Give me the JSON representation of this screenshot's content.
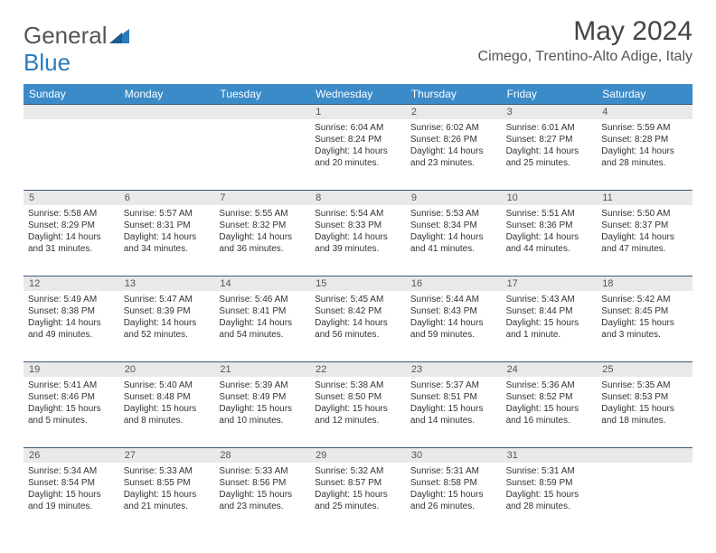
{
  "logo": {
    "text1": "General",
    "text2": "Blue"
  },
  "title": "May 2024",
  "location": "Cimego, Trentino-Alto Adige, Italy",
  "colors": {
    "header_bg": "#3b8bc9",
    "header_text": "#ffffff",
    "week_border": "#3b5a7a",
    "daynum_bg": "#e9e9e9",
    "text": "#333333",
    "logo_blue": "#2b7bbf"
  },
  "day_labels": [
    "Sunday",
    "Monday",
    "Tuesday",
    "Wednesday",
    "Thursday",
    "Friday",
    "Saturday"
  ],
  "weeks": [
    [
      {
        "n": "",
        "lines": []
      },
      {
        "n": "",
        "lines": []
      },
      {
        "n": "",
        "lines": []
      },
      {
        "n": "1",
        "lines": [
          "Sunrise: 6:04 AM",
          "Sunset: 8:24 PM",
          "Daylight: 14 hours",
          "and 20 minutes."
        ]
      },
      {
        "n": "2",
        "lines": [
          "Sunrise: 6:02 AM",
          "Sunset: 8:26 PM",
          "Daylight: 14 hours",
          "and 23 minutes."
        ]
      },
      {
        "n": "3",
        "lines": [
          "Sunrise: 6:01 AM",
          "Sunset: 8:27 PM",
          "Daylight: 14 hours",
          "and 25 minutes."
        ]
      },
      {
        "n": "4",
        "lines": [
          "Sunrise: 5:59 AM",
          "Sunset: 8:28 PM",
          "Daylight: 14 hours",
          "and 28 minutes."
        ]
      }
    ],
    [
      {
        "n": "5",
        "lines": [
          "Sunrise: 5:58 AM",
          "Sunset: 8:29 PM",
          "Daylight: 14 hours",
          "and 31 minutes."
        ]
      },
      {
        "n": "6",
        "lines": [
          "Sunrise: 5:57 AM",
          "Sunset: 8:31 PM",
          "Daylight: 14 hours",
          "and 34 minutes."
        ]
      },
      {
        "n": "7",
        "lines": [
          "Sunrise: 5:55 AM",
          "Sunset: 8:32 PM",
          "Daylight: 14 hours",
          "and 36 minutes."
        ]
      },
      {
        "n": "8",
        "lines": [
          "Sunrise: 5:54 AM",
          "Sunset: 8:33 PM",
          "Daylight: 14 hours",
          "and 39 minutes."
        ]
      },
      {
        "n": "9",
        "lines": [
          "Sunrise: 5:53 AM",
          "Sunset: 8:34 PM",
          "Daylight: 14 hours",
          "and 41 minutes."
        ]
      },
      {
        "n": "10",
        "lines": [
          "Sunrise: 5:51 AM",
          "Sunset: 8:36 PM",
          "Daylight: 14 hours",
          "and 44 minutes."
        ]
      },
      {
        "n": "11",
        "lines": [
          "Sunrise: 5:50 AM",
          "Sunset: 8:37 PM",
          "Daylight: 14 hours",
          "and 47 minutes."
        ]
      }
    ],
    [
      {
        "n": "12",
        "lines": [
          "Sunrise: 5:49 AM",
          "Sunset: 8:38 PM",
          "Daylight: 14 hours",
          "and 49 minutes."
        ]
      },
      {
        "n": "13",
        "lines": [
          "Sunrise: 5:47 AM",
          "Sunset: 8:39 PM",
          "Daylight: 14 hours",
          "and 52 minutes."
        ]
      },
      {
        "n": "14",
        "lines": [
          "Sunrise: 5:46 AM",
          "Sunset: 8:41 PM",
          "Daylight: 14 hours",
          "and 54 minutes."
        ]
      },
      {
        "n": "15",
        "lines": [
          "Sunrise: 5:45 AM",
          "Sunset: 8:42 PM",
          "Daylight: 14 hours",
          "and 56 minutes."
        ]
      },
      {
        "n": "16",
        "lines": [
          "Sunrise: 5:44 AM",
          "Sunset: 8:43 PM",
          "Daylight: 14 hours",
          "and 59 minutes."
        ]
      },
      {
        "n": "17",
        "lines": [
          "Sunrise: 5:43 AM",
          "Sunset: 8:44 PM",
          "Daylight: 15 hours",
          "and 1 minute."
        ]
      },
      {
        "n": "18",
        "lines": [
          "Sunrise: 5:42 AM",
          "Sunset: 8:45 PM",
          "Daylight: 15 hours",
          "and 3 minutes."
        ]
      }
    ],
    [
      {
        "n": "19",
        "lines": [
          "Sunrise: 5:41 AM",
          "Sunset: 8:46 PM",
          "Daylight: 15 hours",
          "and 5 minutes."
        ]
      },
      {
        "n": "20",
        "lines": [
          "Sunrise: 5:40 AM",
          "Sunset: 8:48 PM",
          "Daylight: 15 hours",
          "and 8 minutes."
        ]
      },
      {
        "n": "21",
        "lines": [
          "Sunrise: 5:39 AM",
          "Sunset: 8:49 PM",
          "Daylight: 15 hours",
          "and 10 minutes."
        ]
      },
      {
        "n": "22",
        "lines": [
          "Sunrise: 5:38 AM",
          "Sunset: 8:50 PM",
          "Daylight: 15 hours",
          "and 12 minutes."
        ]
      },
      {
        "n": "23",
        "lines": [
          "Sunrise: 5:37 AM",
          "Sunset: 8:51 PM",
          "Daylight: 15 hours",
          "and 14 minutes."
        ]
      },
      {
        "n": "24",
        "lines": [
          "Sunrise: 5:36 AM",
          "Sunset: 8:52 PM",
          "Daylight: 15 hours",
          "and 16 minutes."
        ]
      },
      {
        "n": "25",
        "lines": [
          "Sunrise: 5:35 AM",
          "Sunset: 8:53 PM",
          "Daylight: 15 hours",
          "and 18 minutes."
        ]
      }
    ],
    [
      {
        "n": "26",
        "lines": [
          "Sunrise: 5:34 AM",
          "Sunset: 8:54 PM",
          "Daylight: 15 hours",
          "and 19 minutes."
        ]
      },
      {
        "n": "27",
        "lines": [
          "Sunrise: 5:33 AM",
          "Sunset: 8:55 PM",
          "Daylight: 15 hours",
          "and 21 minutes."
        ]
      },
      {
        "n": "28",
        "lines": [
          "Sunrise: 5:33 AM",
          "Sunset: 8:56 PM",
          "Daylight: 15 hours",
          "and 23 minutes."
        ]
      },
      {
        "n": "29",
        "lines": [
          "Sunrise: 5:32 AM",
          "Sunset: 8:57 PM",
          "Daylight: 15 hours",
          "and 25 minutes."
        ]
      },
      {
        "n": "30",
        "lines": [
          "Sunrise: 5:31 AM",
          "Sunset: 8:58 PM",
          "Daylight: 15 hours",
          "and 26 minutes."
        ]
      },
      {
        "n": "31",
        "lines": [
          "Sunrise: 5:31 AM",
          "Sunset: 8:59 PM",
          "Daylight: 15 hours",
          "and 28 minutes."
        ]
      },
      {
        "n": "",
        "lines": []
      }
    ]
  ]
}
